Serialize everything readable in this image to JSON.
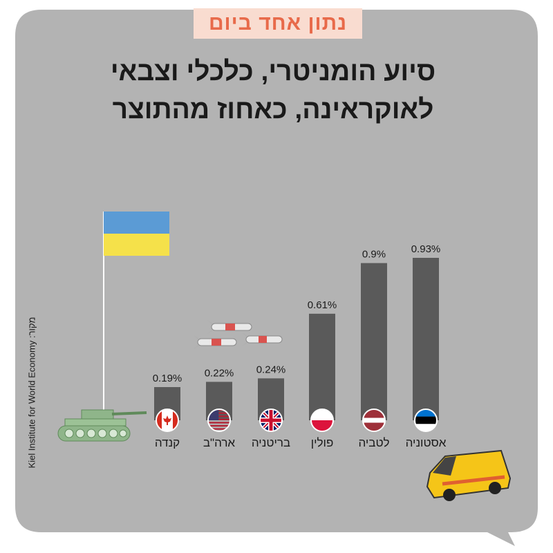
{
  "header": {
    "tag": "נתון אחד ביום",
    "title_line1": "סיוע הומניטרי, כלכלי וצבאי",
    "title_line2": "לאוקראינה, כאחוז מהתוצר",
    "source": "Kiel Institute for World Economy :מקור"
  },
  "colors": {
    "panel": "#b3b3b3",
    "bar": "#5a5a5a",
    "header_bg": "#f9dcd0",
    "header_text": "#e86a4a",
    "ukraine_blue": "#5b9bd5",
    "ukraine_yellow": "#f5e14a",
    "tank_green": "#8fb58a"
  },
  "icons": [
    "canada-flag-icon",
    "usa-flag-icon",
    "uk-flag-icon",
    "poland-flag-icon",
    "latvia-flag-icon",
    "estonia-flag-icon",
    "ukraine-flag-icon",
    "tank-icon",
    "missile-icon",
    "ambulance-icon"
  ],
  "chart_data": {
    "type": "bar",
    "title": "סיוע הומניטרי, כלכלי וצבאי לאוקראינה, כאחוז מהתוצר",
    "categories": [
      "קנדה",
      "ארה\"ב",
      "בריטניה",
      "פולין",
      "לטביה",
      "אסטוניה"
    ],
    "values": [
      0.19,
      0.22,
      0.24,
      0.61,
      0.9,
      0.93
    ],
    "value_labels": [
      "0.19%",
      "0.22%",
      "0.24%",
      "0.61%",
      "0.9%",
      "0.93%"
    ],
    "flags": [
      "canada",
      "usa",
      "uk",
      "poland",
      "latvia",
      "estonia"
    ],
    "unit": "%",
    "ylim": [
      0,
      0.93
    ]
  }
}
